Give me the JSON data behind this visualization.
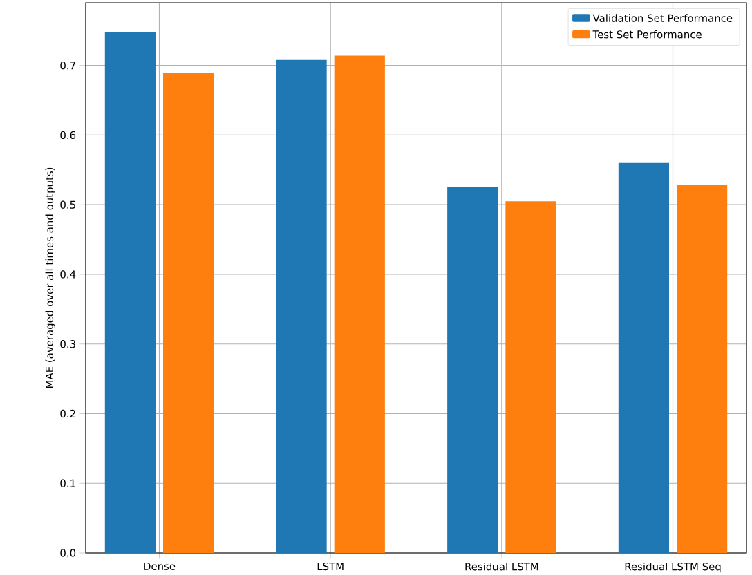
{
  "chart_data": {
    "type": "bar",
    "ylabel": "MAE (averaged over all times and outputs)",
    "categories": [
      "Dense",
      "LSTM",
      "Residual LSTM",
      "Residual LSTM Seq"
    ],
    "series": [
      {
        "name": "Validation Set Performance",
        "color": "#1f77b4",
        "values": [
          0.748,
          0.708,
          0.526,
          0.56
        ]
      },
      {
        "name": "Test Set Performance",
        "color": "#ff7f0e",
        "values": [
          0.689,
          0.714,
          0.505,
          0.528
        ]
      }
    ],
    "ylim": [
      0,
      0.79
    ],
    "yticks": [
      {
        "value": 0,
        "label": "0.0"
      },
      0.1,
      0.2,
      0.3,
      0.4,
      0.5,
      0.6,
      0.7
    ],
    "grid": true,
    "legend": "top right"
  }
}
